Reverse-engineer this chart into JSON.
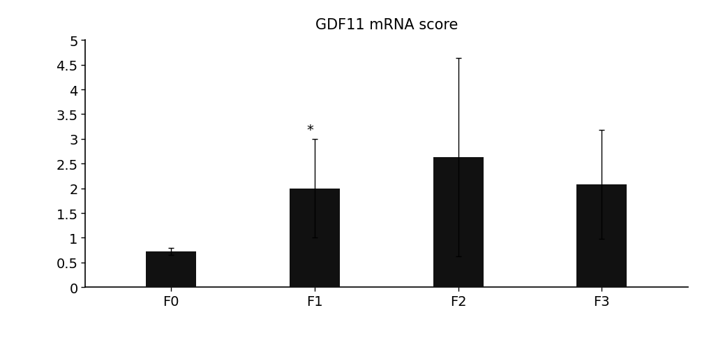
{
  "categories": [
    "F0",
    "F1",
    "F2",
    "F3"
  ],
  "values": [
    0.72,
    2.0,
    2.63,
    2.08
  ],
  "errors": [
    0.07,
    1.0,
    2.0,
    1.1
  ],
  "bar_color": "#111111",
  "bar_width": 0.35,
  "title": "GDF11 mRNA score",
  "title_fontsize": 15,
  "ylim": [
    0,
    5
  ],
  "yticks": [
    0,
    0.5,
    1,
    1.5,
    2,
    2.5,
    3,
    3.5,
    4,
    4.5,
    5
  ],
  "tick_label_fontsize": 14,
  "x_tick_fontsize": 14,
  "annotation": "*",
  "annotation_index": 1,
  "background_color": "#ffffff",
  "capsize": 3,
  "x_positions": [
    0,
    1,
    2,
    3
  ]
}
